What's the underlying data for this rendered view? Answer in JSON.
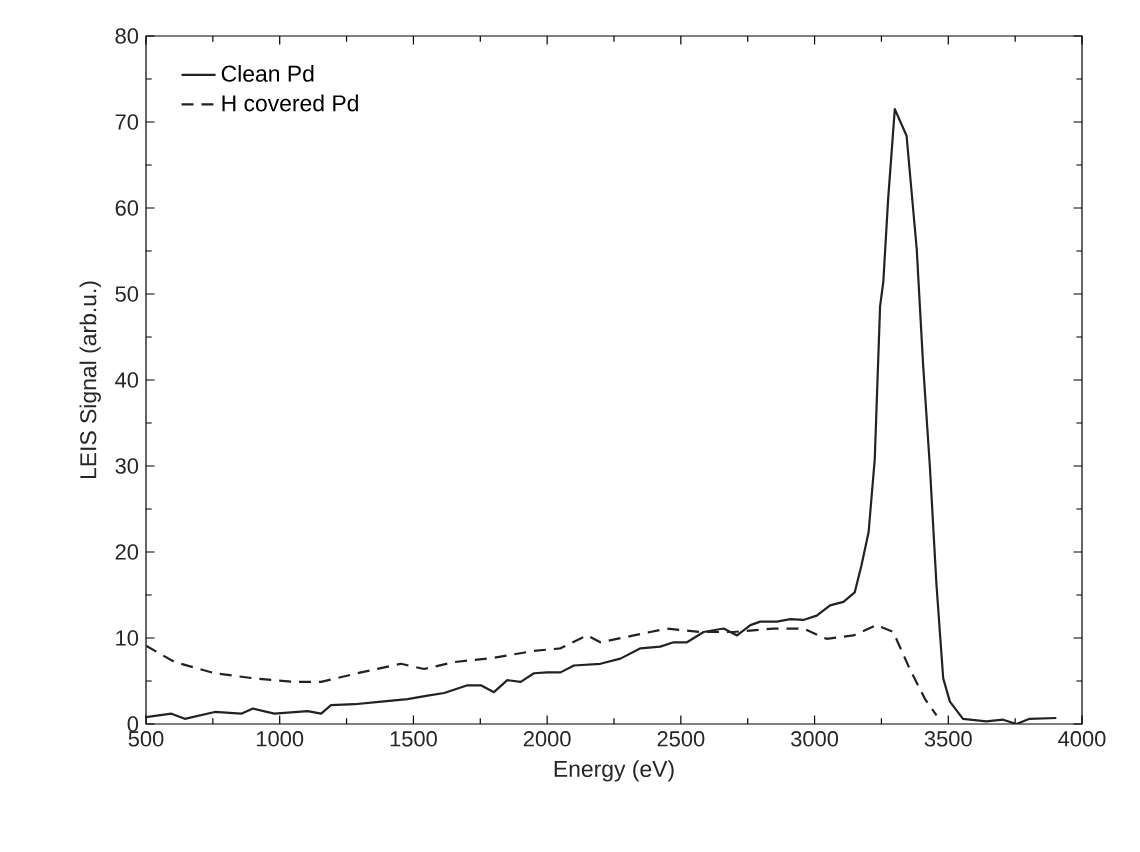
{
  "chart_data": {
    "type": "line",
    "xlabel": "Energy (eV)",
    "ylabel": "LEIS Signal (arb.u.)",
    "xlim": [
      500,
      4000
    ],
    "ylim": [
      0,
      80
    ],
    "xticks": [
      500,
      1000,
      1500,
      2000,
      2500,
      3000,
      3500,
      4000
    ],
    "yticks": [
      0,
      10,
      20,
      30,
      40,
      50,
      60,
      70,
      80
    ],
    "grid": false,
    "legend": "top left",
    "marker": "none",
    "series": [
      {
        "name": "Clean Pd",
        "color": "#222222",
        "line_style": "solid",
        "x": [
          500,
          595,
          645,
          757,
          856,
          900,
          980,
          1105,
          1155,
          1192,
          1280,
          1380,
          1478,
          1553,
          1615,
          1702,
          1752,
          1801,
          1851,
          1901,
          1951,
          2000,
          2050,
          2100,
          2199,
          2274,
          2349,
          2423,
          2473,
          2523,
          2585,
          2660,
          2710,
          2760,
          2797,
          2859,
          2909,
          2958,
          3008,
          3058,
          3108,
          3150,
          3175,
          3202,
          3225,
          3245,
          3257,
          3275,
          3300,
          3344,
          3382,
          3406,
          3431,
          3456,
          3481,
          3506,
          3555,
          3642,
          3705,
          3755,
          3804,
          3904
        ],
        "values": [
          0.8,
          1.2,
          0.6,
          1.4,
          1.2,
          1.8,
          1.2,
          1.5,
          1.2,
          2.2,
          2.3,
          2.6,
          2.9,
          3.3,
          3.6,
          4.5,
          4.5,
          3.7,
          5.1,
          4.9,
          5.9,
          6.0,
          6.0,
          6.8,
          7.0,
          7.6,
          8.8,
          9.0,
          9.5,
          9.5,
          10.7,
          11.1,
          10.3,
          11.5,
          11.9,
          11.9,
          12.2,
          12.1,
          12.6,
          13.8,
          14.2,
          15.3,
          18.4,
          22.3,
          30.8,
          48.6,
          51.4,
          61,
          71.5,
          68.4,
          55.2,
          41.7,
          30,
          16.1,
          5.3,
          2.6,
          0.6,
          0.3,
          0.5,
          0,
          0.6,
          0.7
        ]
      },
      {
        "name": "H covered Pd",
        "color": "#222222",
        "line_style": "dashed",
        "x": [
          500,
          607,
          757,
          906,
          1055,
          1155,
          1304,
          1453,
          1540,
          1652,
          1801,
          1951,
          2050,
          2149,
          2199,
          2324,
          2448,
          2573,
          2697,
          2846,
          2958,
          3045,
          3145,
          3232,
          3294,
          3356,
          3413,
          3456
        ],
        "values": [
          9.1,
          7.2,
          5.9,
          5.3,
          4.9,
          4.9,
          6.0,
          7.0,
          6.4,
          7.2,
          7.7,
          8.5,
          8.8,
          10.3,
          9.5,
          10.3,
          11.1,
          10.7,
          10.7,
          11.1,
          11.1,
          9.9,
          10.3,
          11.5,
          10.7,
          6.4,
          2.9,
          1.0
        ]
      }
    ]
  }
}
